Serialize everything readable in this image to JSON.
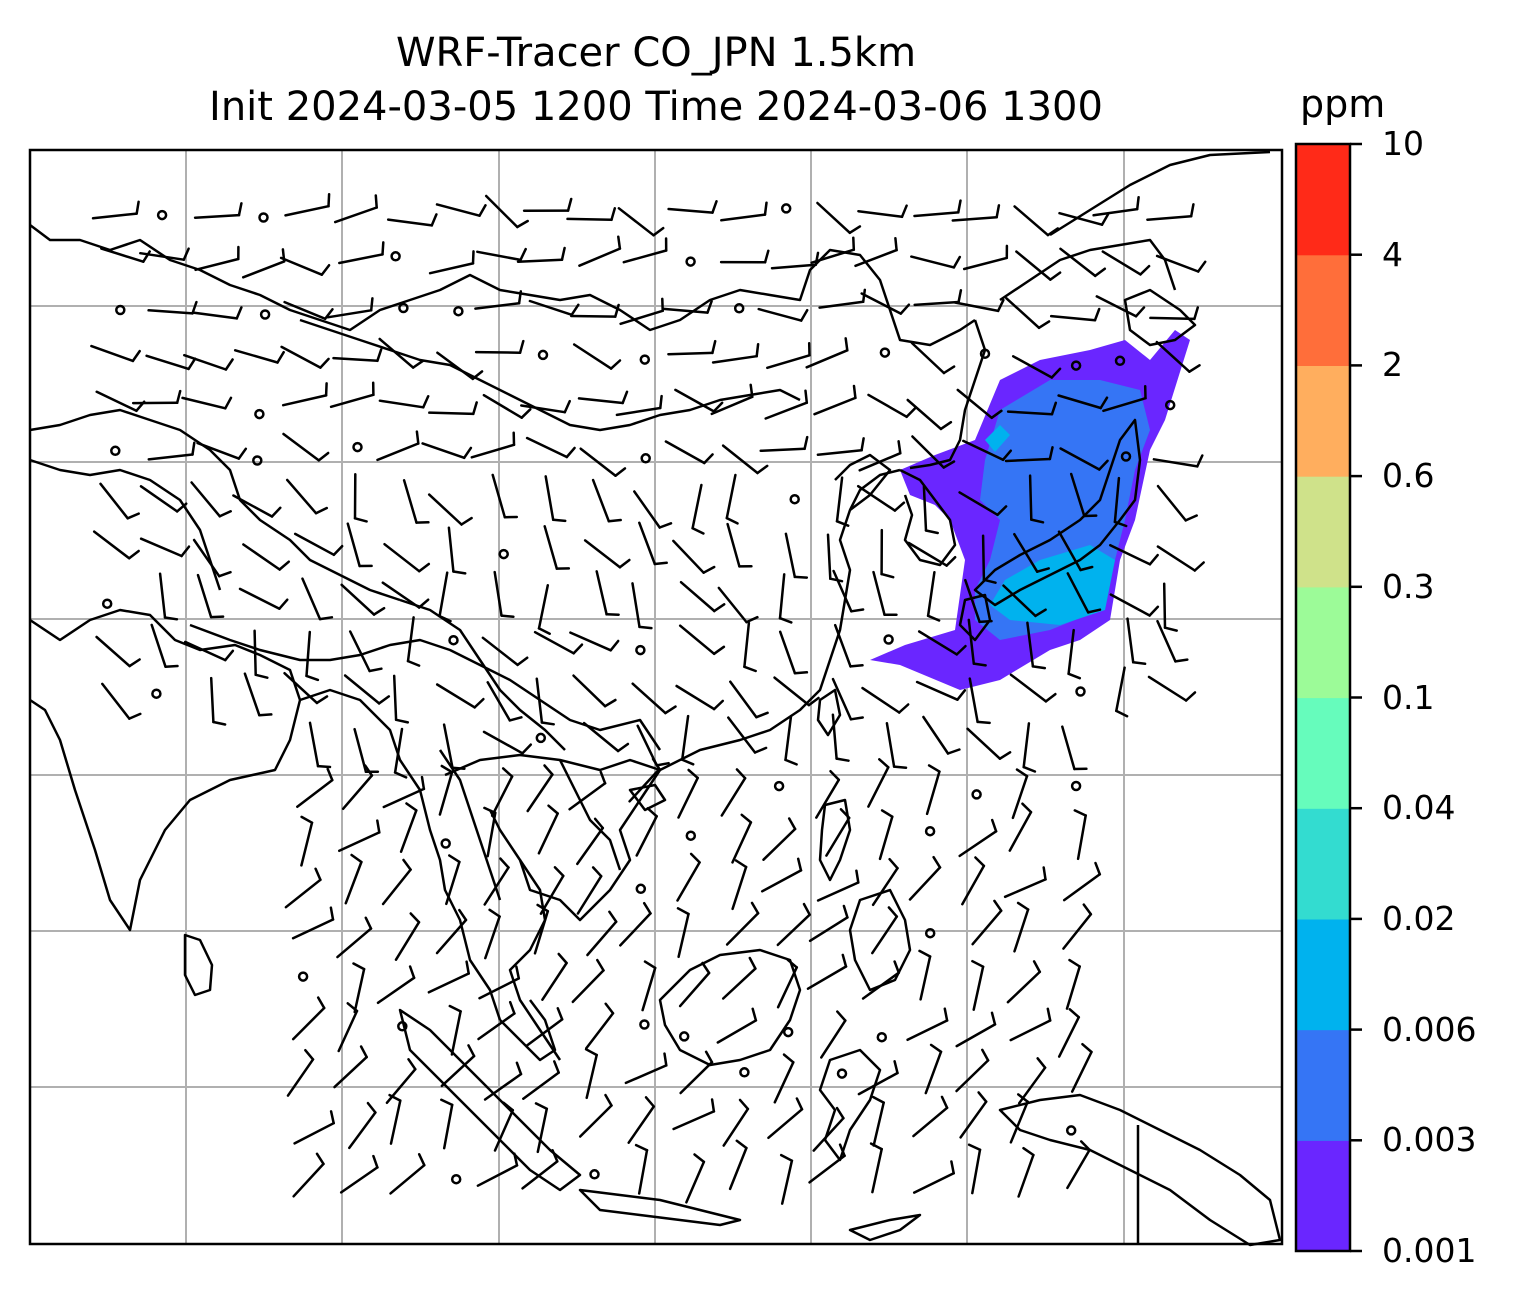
{
  "title": {
    "line1": "WRF-Tracer CO_JPN 1.5km",
    "line2": "Init 2024-03-05 1200 Time 2024-03-06 1300"
  },
  "colorbar": {
    "unit": "ppm",
    "ticks": [
      "0.001",
      "0.003",
      "0.006",
      "0.02",
      "0.04",
      "0.1",
      "0.3",
      "0.6",
      "2",
      "4",
      "10"
    ],
    "colors": [
      "#6a26ff",
      "#3575f5",
      "#00b2ee",
      "#33dcd0",
      "#66fcbc",
      "#9cfb98",
      "#cfe28a",
      "#ffae5e",
      "#ff6e3a",
      "#ff2a18"
    ]
  },
  "map": {
    "gridlines": true,
    "coastline_color": "#000000",
    "grid_color": "#b0b0b0",
    "plume_colors": {
      "outer": "#6a26ff",
      "mid": "#3575f5",
      "inner": "#00b2ee"
    }
  }
}
